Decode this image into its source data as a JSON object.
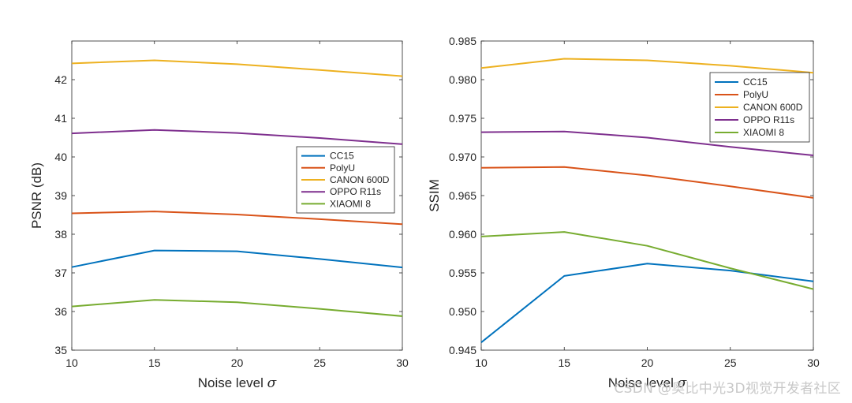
{
  "chart_data": [
    {
      "type": "line",
      "title": "",
      "xlabel": "Noise level",
      "xlabel_symbol": "σ",
      "ylabel": "PSNR (dB)",
      "x": [
        10,
        15,
        20,
        25,
        30
      ],
      "xlim": [
        10,
        30
      ],
      "ylim": [
        35,
        43
      ],
      "xticks": [
        "10",
        "15",
        "20",
        "25",
        "30"
      ],
      "yticks": [
        "35",
        "36",
        "37",
        "38",
        "39",
        "40",
        "41",
        "42"
      ],
      "ytick_values": [
        35,
        36,
        37,
        38,
        39,
        40,
        41,
        42
      ],
      "legend_position": "center-right",
      "series": [
        {
          "name": "CC15",
          "color": "#0072BD",
          "values": [
            37.15,
            37.58,
            37.56,
            37.36,
            37.14
          ]
        },
        {
          "name": "PolyU",
          "color": "#D95319",
          "values": [
            38.54,
            38.59,
            38.51,
            38.39,
            38.26
          ]
        },
        {
          "name": "CANON 600D",
          "color": "#EDB120",
          "values": [
            42.42,
            42.5,
            42.4,
            42.25,
            42.09
          ]
        },
        {
          "name": "OPPO R11s",
          "color": "#7E2F8E",
          "values": [
            40.61,
            40.7,
            40.62,
            40.49,
            40.33
          ]
        },
        {
          "name": "XIAOMI 8",
          "color": "#77AC30",
          "values": [
            36.13,
            36.3,
            36.24,
            36.07,
            35.88
          ]
        }
      ]
    },
    {
      "type": "line",
      "title": "",
      "xlabel": "Noise level",
      "xlabel_symbol": "σ",
      "ylabel": "SSIM",
      "x": [
        10,
        15,
        20,
        25,
        30
      ],
      "xlim": [
        10,
        30
      ],
      "ylim": [
        0.945,
        0.985
      ],
      "xticks": [
        "10",
        "15",
        "20",
        "25",
        "30"
      ],
      "yticks": [
        "0.945",
        "0.950",
        "0.955",
        "0.960",
        "0.965",
        "0.970",
        "0.975",
        "0.980",
        "0.985"
      ],
      "ytick_values": [
        0.945,
        0.95,
        0.955,
        0.96,
        0.965,
        0.97,
        0.975,
        0.98,
        0.985
      ],
      "legend_position": "top-right",
      "series": [
        {
          "name": "CC15",
          "color": "#0072BD",
          "values": [
            0.946,
            0.9546,
            0.9562,
            0.9553,
            0.9539
          ]
        },
        {
          "name": "PolyU",
          "color": "#D95319",
          "values": [
            0.9686,
            0.9687,
            0.9676,
            0.9662,
            0.9647
          ]
        },
        {
          "name": "CANON 600D",
          "color": "#EDB120",
          "values": [
            0.9815,
            0.9827,
            0.9825,
            0.9818,
            0.9809
          ]
        },
        {
          "name": "OPPO R11s",
          "color": "#7E2F8E",
          "values": [
            0.9732,
            0.9733,
            0.9725,
            0.9713,
            0.9702
          ]
        },
        {
          "name": "XIAOMI 8",
          "color": "#77AC30",
          "values": [
            0.9597,
            0.9603,
            0.9585,
            0.9556,
            0.9529
          ]
        }
      ]
    }
  ],
  "watermark": "CSDN @奥比中光3D视觉开发者社区"
}
